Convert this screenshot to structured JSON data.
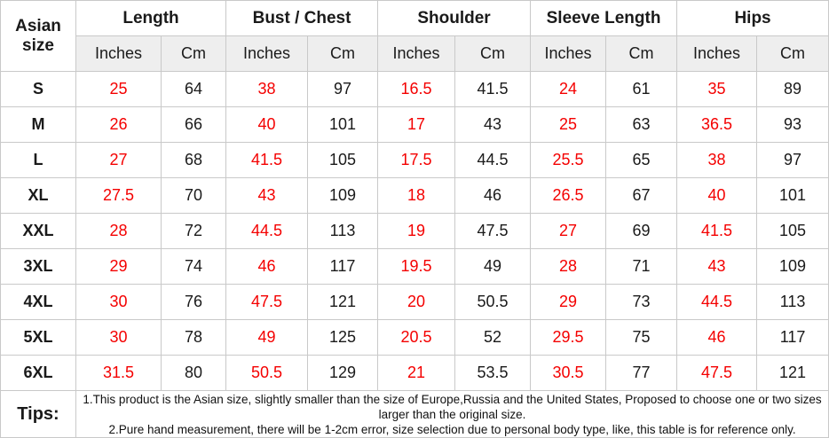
{
  "colors": {
    "accent_red": "#f40000",
    "text_black": "#1a1a1a",
    "grid_border": "#c9c9c9",
    "unit_row_bg": "#eeeeee"
  },
  "chart_data": {
    "type": "table",
    "row_header": "Asian size",
    "column_groups": [
      "Length",
      "Bust / Chest",
      "Shoulder",
      "Sleeve Length",
      "Hips"
    ],
    "unit_labels": [
      "Inches",
      "Cm"
    ],
    "columns": [
      "Asian size",
      "Length (Inches)",
      "Length (Cm)",
      "Bust / Chest (Inches)",
      "Bust / Chest (Cm)",
      "Shoulder (Inches)",
      "Shoulder (Cm)",
      "Sleeve Length (Inches)",
      "Sleeve Length (Cm)",
      "Hips (Inches)",
      "Hips (Cm)"
    ],
    "rows": [
      {
        "size": "S",
        "values": [
          25,
          64,
          38,
          97,
          16.5,
          41.5,
          24,
          61,
          35,
          89
        ]
      },
      {
        "size": "M",
        "values": [
          26,
          66,
          40,
          101,
          17,
          43,
          25,
          63,
          36.5,
          93
        ]
      },
      {
        "size": "L",
        "values": [
          27,
          68,
          41.5,
          105,
          17.5,
          44.5,
          25.5,
          65,
          38,
          97
        ]
      },
      {
        "size": "XL",
        "values": [
          27.5,
          70,
          43,
          109,
          18,
          46,
          26.5,
          67,
          40,
          101
        ]
      },
      {
        "size": "XXL",
        "values": [
          28,
          72,
          44.5,
          113,
          19,
          47.5,
          27,
          69,
          41.5,
          105
        ]
      },
      {
        "size": "3XL",
        "values": [
          29,
          74,
          46,
          117,
          19.5,
          49,
          28,
          71,
          43,
          109
        ]
      },
      {
        "size": "4XL",
        "values": [
          30,
          76,
          47.5,
          121,
          20,
          50.5,
          29,
          73,
          44.5,
          113
        ]
      },
      {
        "size": "5XL",
        "values": [
          30,
          78,
          49,
          125,
          20.5,
          52,
          29.5,
          75,
          46,
          117
        ]
      },
      {
        "size": "6XL",
        "values": [
          31.5,
          80,
          50.5,
          129,
          21,
          53.5,
          30.5,
          77,
          47.5,
          121
        ]
      }
    ]
  },
  "tips": {
    "label": "Tips:",
    "lines": [
      "1.This product is the Asian size, slightly smaller than the size of Europe,Russia and the United States, Proposed to choose one or two sizes larger than the original size.",
      "2.Pure hand measurement, there will be 1-2cm error, size selection due to personal body type, like, this table is for reference only."
    ]
  }
}
